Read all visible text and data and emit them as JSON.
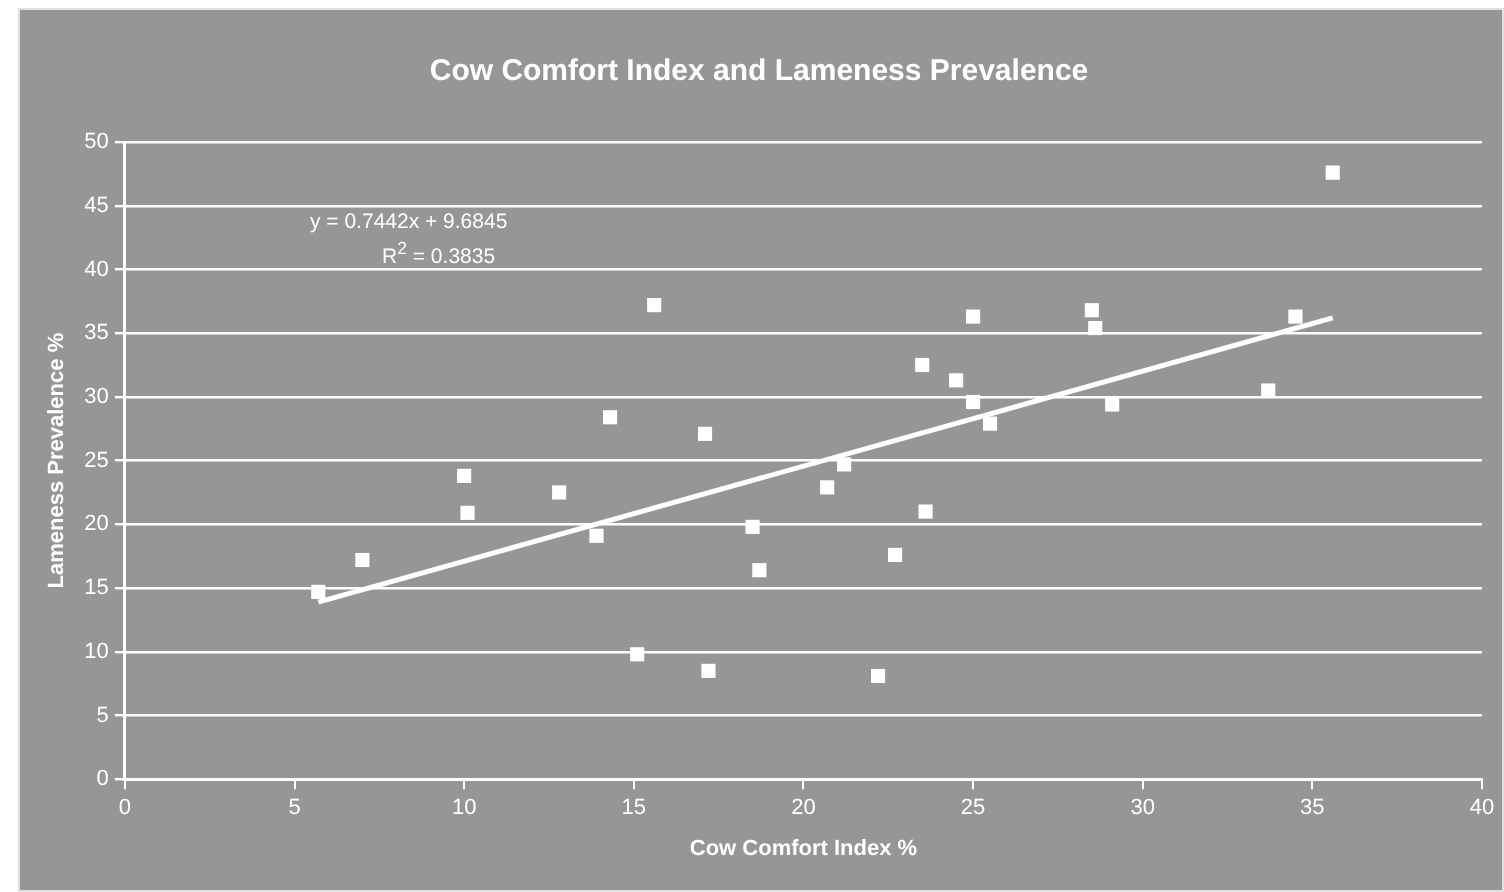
{
  "chart_data": {
    "type": "scatter",
    "title": "Cow Comfort Index and Lameness Prevalence",
    "xlabel": "Cow Comfort Index %",
    "ylabel": "Lameness Prevalence %",
    "annotations": [
      "y = 0.7442x + 9.6845",
      "R$^{2}$ = 0.3835"
    ],
    "series": [
      {
        "color": "#ffffff",
        "x": [
          5.7,
          7.0,
          10.0,
          10.1,
          12.8,
          13.9,
          14.3,
          15.6,
          17.1,
          18.5,
          18.7,
          15.1,
          17.2,
          21.2,
          20.7,
          23.6,
          22.7,
          22.2,
          23.5,
          24.5,
          25.0,
          25.0,
          25.5,
          28.5,
          28.6,
          29.1,
          33.7,
          34.5,
          35.6
        ],
        "values": [
          14.7,
          17.2,
          23.8,
          20.9,
          22.5,
          19.1,
          28.4,
          37.2,
          27.1,
          19.8,
          16.4,
          9.8,
          8.5,
          24.7,
          22.9,
          21.0,
          17.6,
          8.1,
          32.5,
          31.3,
          36.3,
          29.6,
          27.9,
          36.8,
          35.4,
          29.4,
          30.5,
          36.3,
          47.6
        ]
      },
      {
        "type": "line",
        "marker": "none",
        "color": "#ffffff",
        "x": [
          5.7,
          35.6
        ],
        "values": [
          13.9,
          36.2
        ]
      }
    ],
    "xlim": [
      0,
      40
    ],
    "xticks": [
      0,
      5,
      10,
      15,
      20,
      25,
      30,
      35,
      40
    ],
    "ylim": [
      0,
      50
    ],
    "yticks": [
      0,
      5,
      10,
      15,
      20,
      25,
      30,
      35,
      40,
      45,
      50
    ],
    "grid": "y",
    "marker": "square"
  }
}
